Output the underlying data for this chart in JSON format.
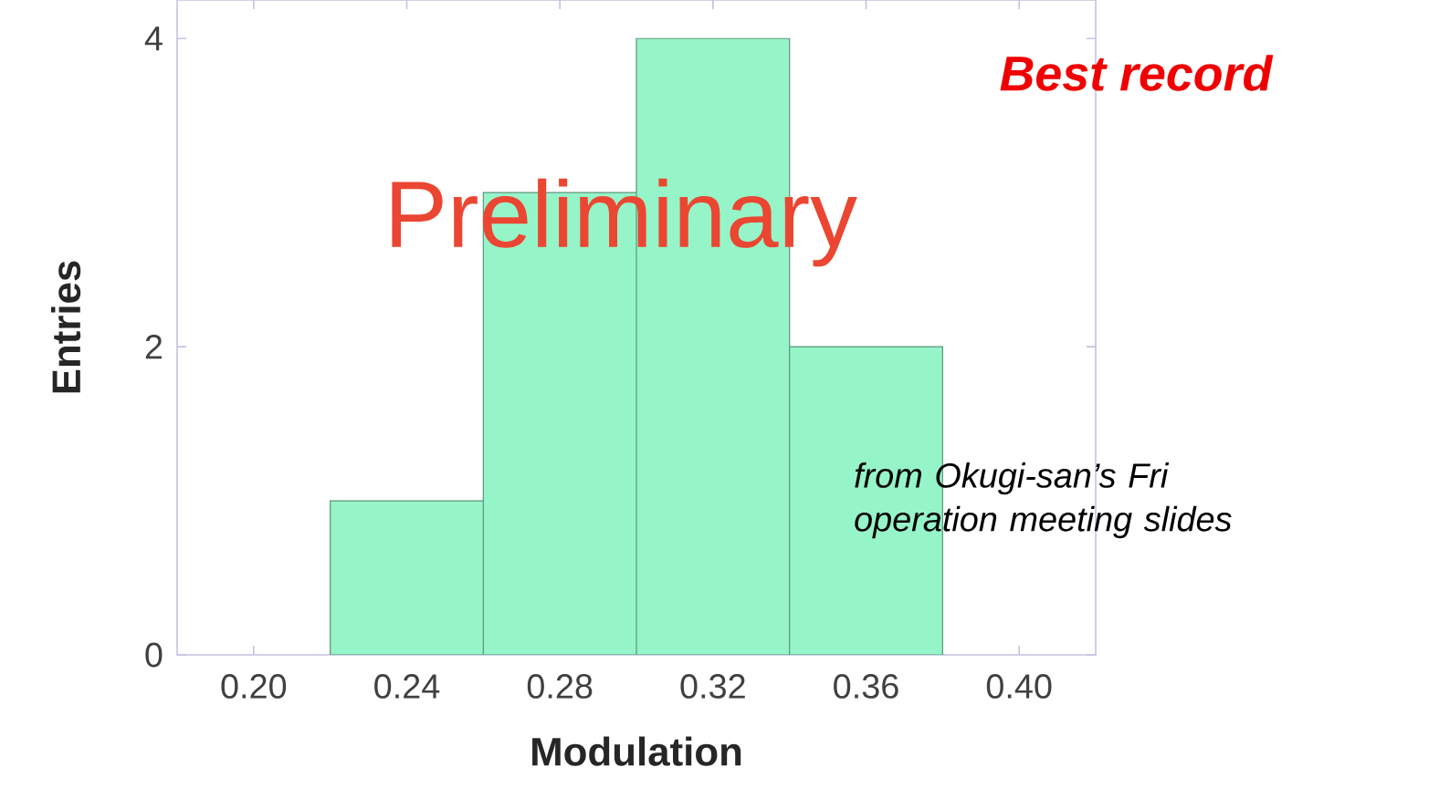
{
  "chart_data": {
    "type": "histogram",
    "xlabel": "Modulation",
    "ylabel": "Entries",
    "bins": [
      0.22,
      0.26,
      0.3,
      0.34,
      0.38
    ],
    "values": [
      1,
      3,
      4,
      2
    ],
    "color": "#96f5c8",
    "xlim": [
      0.18,
      0.42
    ],
    "ylim": [
      0,
      4.25
    ],
    "xticks": [
      {
        "value": 0.2,
        "label": "0.20"
      },
      {
        "value": 0.24,
        "label": "0.24"
      },
      {
        "value": 0.28,
        "label": "0.28"
      },
      {
        "value": 0.32,
        "label": "0.32"
      },
      {
        "value": 0.36,
        "label": "0.36"
      },
      {
        "value": 0.4,
        "label": "0.40"
      }
    ],
    "yticks": [
      0,
      2,
      4
    ],
    "grid": false,
    "annotations": [
      "Best record",
      "Preliminary",
      "from Okugi-san’s Fri operation meeting slides"
    ]
  }
}
